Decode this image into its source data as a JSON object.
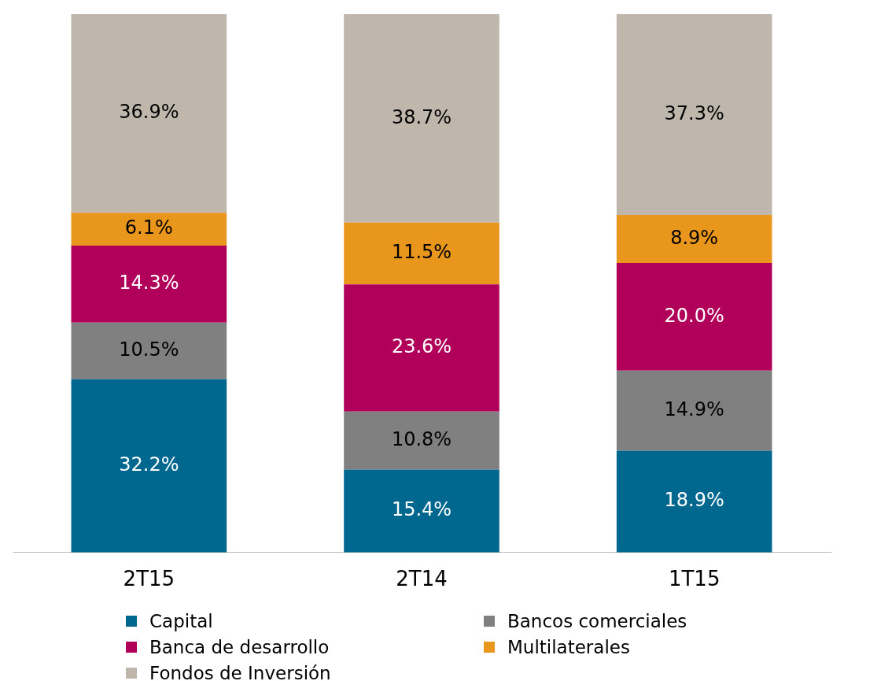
{
  "chart_data": {
    "type": "bar",
    "stacked": true,
    "categories": [
      "2T15",
      "2T14",
      "1T15"
    ],
    "series": [
      {
        "name": "Capital",
        "color": "#00678f",
        "values": [
          32.2,
          15.4,
          18.9
        ],
        "value_labels": [
          "32.2%",
          "15.4%",
          "18.9%"
        ]
      },
      {
        "name": "Bancos comerciales",
        "color": "#808080",
        "values": [
          10.5,
          10.8,
          14.9
        ],
        "value_labels": [
          "10.5%",
          "10.8%",
          "14.9%"
        ]
      },
      {
        "name": "Banca de desarrollo",
        "color": "#b0005a",
        "values": [
          14.3,
          23.6,
          20.0
        ],
        "value_labels": [
          "14.3%",
          "23.6%",
          "20.0%"
        ]
      },
      {
        "name": "Multilaterales",
        "color": "#e8961c",
        "values": [
          6.1,
          11.5,
          8.9
        ],
        "value_labels": [
          "6.1%",
          "11.5%",
          "8.9%"
        ]
      },
      {
        "name": "Fondos de Inversión",
        "color": "#bfb6ac",
        "values": [
          36.9,
          38.7,
          37.3
        ],
        "value_labels": [
          "36.9%",
          "38.7%",
          "37.3%"
        ]
      }
    ],
    "legend": "bottom",
    "grid": false
  }
}
